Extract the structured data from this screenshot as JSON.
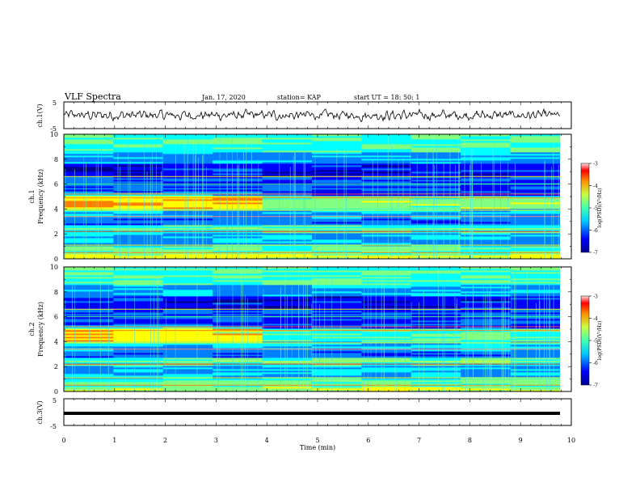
{
  "header": {
    "title": "VLF Spectra",
    "date": "Jan. 17, 2020",
    "station": "station= KAP",
    "start": "start UT =  18: 50: 1"
  },
  "chart_data": [
    {
      "type": "line",
      "panel": "ch1",
      "ylabel": "ch.1(V)",
      "ylim": [
        -5,
        5
      ],
      "xlim": [
        0,
        10
      ],
      "xlabel": "",
      "series": [
        {
          "description": "noisy waveform oscillating around ~0 V, amplitude about ±2.5 V",
          "y_range": [
            -3,
            3
          ]
        }
      ]
    },
    {
      "type": "heatmap",
      "panel": "ch1",
      "ylabel": "ch.1\nFrequency (kHz)",
      "xlim": [
        0,
        10
      ],
      "ylim": [
        0,
        10
      ],
      "yticks": [
        0,
        2,
        4,
        6,
        8,
        10
      ],
      "colorbar": {
        "label": "log(PSD)(V²/Hz)",
        "ticks": [
          -3,
          -4,
          -5,
          -6,
          -7
        ],
        "range": [
          -7,
          -3
        ]
      },
      "data_end_min": 9.8
    },
    {
      "type": "heatmap",
      "panel": "ch2",
      "ylabel": "ch.2\nFrequency (kHz)",
      "xlim": [
        0,
        10
      ],
      "ylim": [
        0,
        10
      ],
      "yticks": [
        0,
        2,
        4,
        6,
        8,
        10
      ],
      "colorbar": {
        "label": "log(PSD)(V²/Hz)",
        "ticks": [
          -3,
          -4,
          -5,
          -6,
          -7
        ],
        "range": [
          -7,
          -3
        ]
      },
      "data_end_min": 9.8
    },
    {
      "type": "line",
      "panel": "ch3",
      "ylabel": "ch.3(V)",
      "ylim": [
        -5,
        5
      ],
      "xlim": [
        0,
        10
      ],
      "xlabel": "Time (min)",
      "xticks": [
        0,
        1,
        2,
        3,
        4,
        5,
        6,
        7,
        8,
        9,
        10
      ],
      "series": [
        {
          "description": "flat thick line",
          "value": 0
        }
      ]
    }
  ],
  "colors": {
    "jet": [
      "#00008f",
      "#0000ff",
      "#0080ff",
      "#00ffff",
      "#80ff80",
      "#ffff00",
      "#ff8000",
      "#ff0000",
      "#800000"
    ]
  }
}
